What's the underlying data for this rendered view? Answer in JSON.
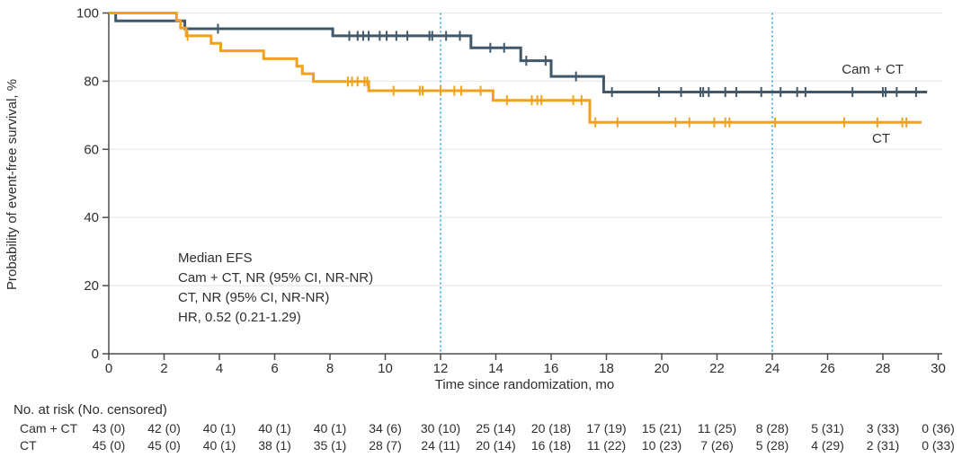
{
  "colors": {
    "cam_ct": "#41586A",
    "ct": "#F0A11E",
    "reference_line": "#4FBBE7",
    "grid": "#E9E9E9",
    "axis": "#4D4D4D",
    "text": "#2E2E2E"
  },
  "chart_data": {
    "type": "line",
    "subtype": "kaplan-meier-step",
    "title": "",
    "xlabel": "Time since randomization, mo",
    "ylabel": "Probability of event-free survival, %",
    "xlim": [
      0,
      30
    ],
    "ylim": [
      0,
      100
    ],
    "x_ticks": [
      0,
      2,
      4,
      6,
      8,
      10,
      12,
      14,
      16,
      18,
      20,
      22,
      24,
      26,
      28,
      30
    ],
    "y_ticks": [
      0,
      20,
      40,
      60,
      80,
      100
    ],
    "grid": "horizontal",
    "reference_lines_x": [
      12,
      24
    ],
    "legend_position": "inline-right-of-curves",
    "annotation_lines": [
      "Median EFS",
      "Cam + CT, NR (95% CI, NR-NR)",
      "CT, NR (95% CI, NR-NR)",
      "HR, 0.52 (0.21-1.29)"
    ],
    "series": [
      {
        "name": "Cam + CT",
        "color": "#41586A",
        "end_x": 29.6,
        "steps": [
          [
            0,
            100
          ],
          [
            0.25,
            97.7
          ],
          [
            2.75,
            95.4
          ],
          [
            8.1,
            93.3
          ],
          [
            13.1,
            89.8
          ],
          [
            14.9,
            86.0
          ],
          [
            16.0,
            81.4
          ],
          [
            17.9,
            76.8
          ]
        ],
        "censor_marks": [
          [
            3.95,
            95.4
          ],
          [
            8.7,
            93.3
          ],
          [
            9.0,
            93.3
          ],
          [
            9.2,
            93.3
          ],
          [
            9.4,
            93.3
          ],
          [
            9.8,
            93.3
          ],
          [
            10.05,
            93.3
          ],
          [
            10.4,
            93.3
          ],
          [
            10.8,
            93.3
          ],
          [
            11.6,
            93.3
          ],
          [
            11.7,
            93.3
          ],
          [
            12.2,
            93.3
          ],
          [
            12.7,
            93.3
          ],
          [
            13.8,
            89.8
          ],
          [
            14.3,
            89.8
          ],
          [
            15.1,
            86.0
          ],
          [
            15.8,
            86.0
          ],
          [
            16.9,
            81.4
          ],
          [
            18.2,
            76.8
          ],
          [
            19.9,
            76.8
          ],
          [
            20.7,
            76.8
          ],
          [
            21.4,
            76.8
          ],
          [
            21.5,
            76.8
          ],
          [
            21.7,
            76.8
          ],
          [
            22.3,
            76.8
          ],
          [
            22.7,
            76.8
          ],
          [
            23.6,
            76.8
          ],
          [
            24.3,
            76.8
          ],
          [
            24.9,
            76.8
          ],
          [
            25.2,
            76.8
          ],
          [
            26.9,
            76.8
          ],
          [
            28.0,
            76.8
          ],
          [
            28.1,
            76.8
          ],
          [
            28.5,
            76.8
          ],
          [
            29.2,
            76.8
          ]
        ]
      },
      {
        "name": "CT",
        "color": "#F0A11E",
        "end_x": 29.4,
        "steps": [
          [
            0,
            100
          ],
          [
            2.45,
            97.8
          ],
          [
            2.6,
            95.6
          ],
          [
            2.8,
            93.3
          ],
          [
            3.7,
            91.1
          ],
          [
            4.05,
            88.9
          ],
          [
            5.6,
            86.6
          ],
          [
            6.8,
            84.4
          ],
          [
            7.0,
            82.2
          ],
          [
            7.4,
            79.9
          ],
          [
            9.4,
            77.2
          ],
          [
            13.9,
            74.4
          ],
          [
            17.4,
            67.9
          ]
        ],
        "censor_marks": [
          [
            2.85,
            93.3
          ],
          [
            8.65,
            79.9
          ],
          [
            8.8,
            79.9
          ],
          [
            9.0,
            79.9
          ],
          [
            9.25,
            79.9
          ],
          [
            9.35,
            79.9
          ],
          [
            10.3,
            77.2
          ],
          [
            11.25,
            77.2
          ],
          [
            11.35,
            77.2
          ],
          [
            12.0,
            77.2
          ],
          [
            12.5,
            77.2
          ],
          [
            12.75,
            77.2
          ],
          [
            13.45,
            77.2
          ],
          [
            14.4,
            74.4
          ],
          [
            15.3,
            74.4
          ],
          [
            15.5,
            74.4
          ],
          [
            15.65,
            74.4
          ],
          [
            16.8,
            74.4
          ],
          [
            17.1,
            74.4
          ],
          [
            17.6,
            67.9
          ],
          [
            18.4,
            67.9
          ],
          [
            20.5,
            67.9
          ],
          [
            21.0,
            67.9
          ],
          [
            21.9,
            67.9
          ],
          [
            22.3,
            67.9
          ],
          [
            22.45,
            67.9
          ],
          [
            24.1,
            67.9
          ],
          [
            26.6,
            67.9
          ],
          [
            27.8,
            67.9
          ],
          [
            28.7,
            67.9
          ],
          [
            28.85,
            67.9
          ]
        ]
      }
    ],
    "risk_table": {
      "header": "No. at risk (No. censored)",
      "time_points": [
        0,
        2,
        4,
        6,
        8,
        10,
        12,
        14,
        16,
        18,
        20,
        22,
        24,
        26,
        28,
        30
      ],
      "rows": [
        {
          "label": "Cam + CT",
          "values": [
            "43 (0)",
            "42 (0)",
            "40 (1)",
            "40 (1)",
            "40 (1)",
            "34 (6)",
            "30 (10)",
            "25 (14)",
            "20 (18)",
            "17 (19)",
            "15 (21)",
            "11 (25)",
            "8 (28)",
            "5 (31)",
            "3 (33)",
            "0 (36)"
          ]
        },
        {
          "label": "CT",
          "values": [
            "45 (0)",
            "45 (0)",
            "40 (1)",
            "38 (1)",
            "35 (1)",
            "28 (7)",
            "24 (11)",
            "20 (14)",
            "16 (18)",
            "11 (22)",
            "10 (23)",
            "7 (26)",
            "5 (28)",
            "4 (29)",
            "2 (31)",
            "0 (33)"
          ]
        }
      ]
    }
  }
}
